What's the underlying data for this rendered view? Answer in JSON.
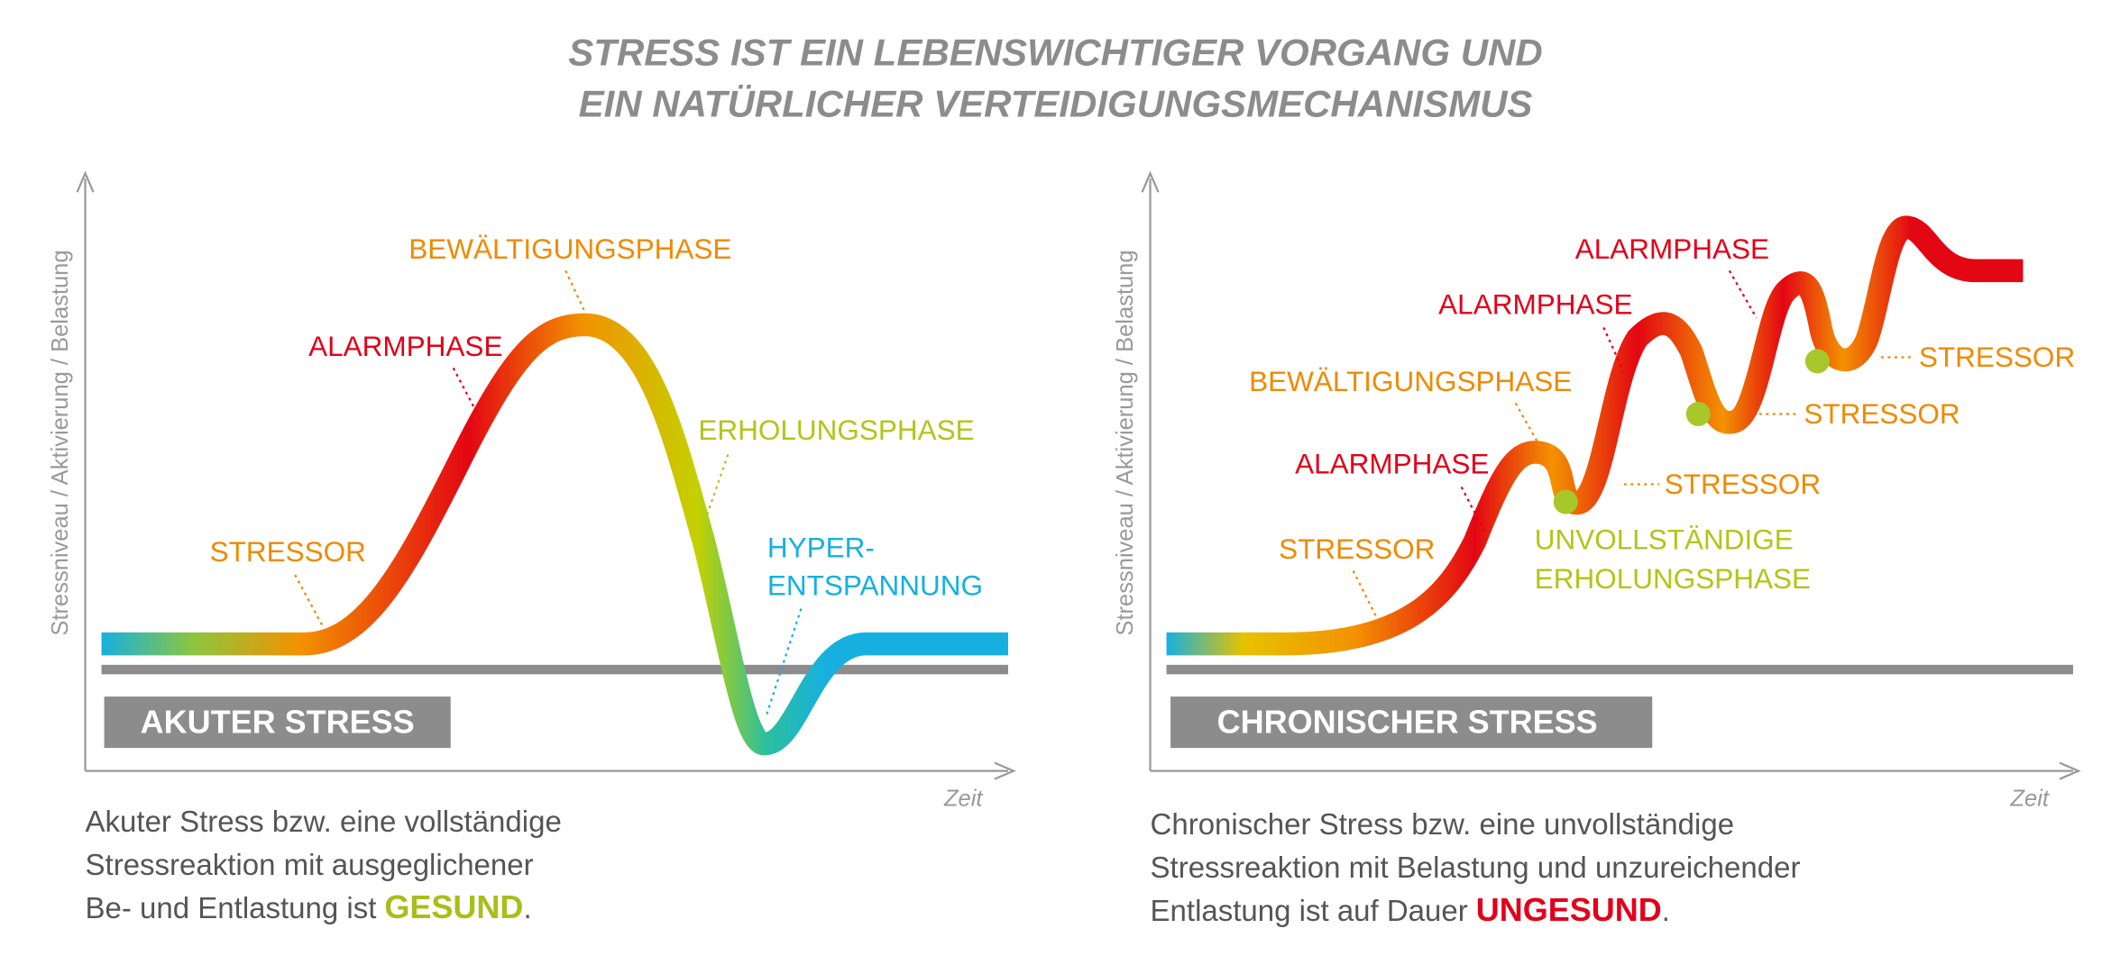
{
  "title": {
    "lines": [
      "STRESS IST EIN LEBENSWICHTIGER VORGANG UND",
      "EIN NATÜRLICHER VERTEIDIGUNGSMECHANISMUS"
    ]
  },
  "left": {
    "y_axis": "Stressniveau / Aktivierung / Belastung",
    "x_axis": "Zeit",
    "box": "AKUTER STRESS",
    "labels": {
      "stressor": "STRESSOR",
      "alarm": "ALARMPHASE",
      "coping": "BEWÄLTIGUNGSPHASE",
      "recovery": "ERHOLUNGSPHASE",
      "hyper": [
        "HYPER-",
        "ENTSPANNUNG"
      ]
    },
    "caption": {
      "lines": [
        "Akuter Stress bzw. eine vollständige",
        "Stressreaktion mit ausgeglichener"
      ],
      "last": "Be- und Entlastung ist",
      "emphasis": "GESUND",
      "end": "."
    }
  },
  "right": {
    "y_axis": "Stressniveau / Aktivierung / Belastung",
    "x_axis": "Zeit",
    "box": "CHRONISCHER STRESS",
    "labels": {
      "stressor_1": "STRESSOR",
      "alarm_1": "ALARMPHASE",
      "coping": "BEWÄLTIGUNGSPHASE",
      "alarm_2": "ALARMPHASE",
      "alarm_3": "ALARMPHASE",
      "stressor_2": "STRESSOR",
      "stressor_3": "STRESSOR",
      "stressor_4": "STRESSOR",
      "incomplete": [
        "UNVOLLSTÄNDIGE",
        "ERHOLUNGSPHASE"
      ]
    },
    "caption": {
      "lines": [
        "Chronischer Stress bzw. eine unvollständige",
        "Stressreaktion mit Belastung und unzureichender"
      ],
      "last": "Entlastung ist auf Dauer",
      "emphasis": "UNGESUND",
      "end": "."
    }
  }
}
